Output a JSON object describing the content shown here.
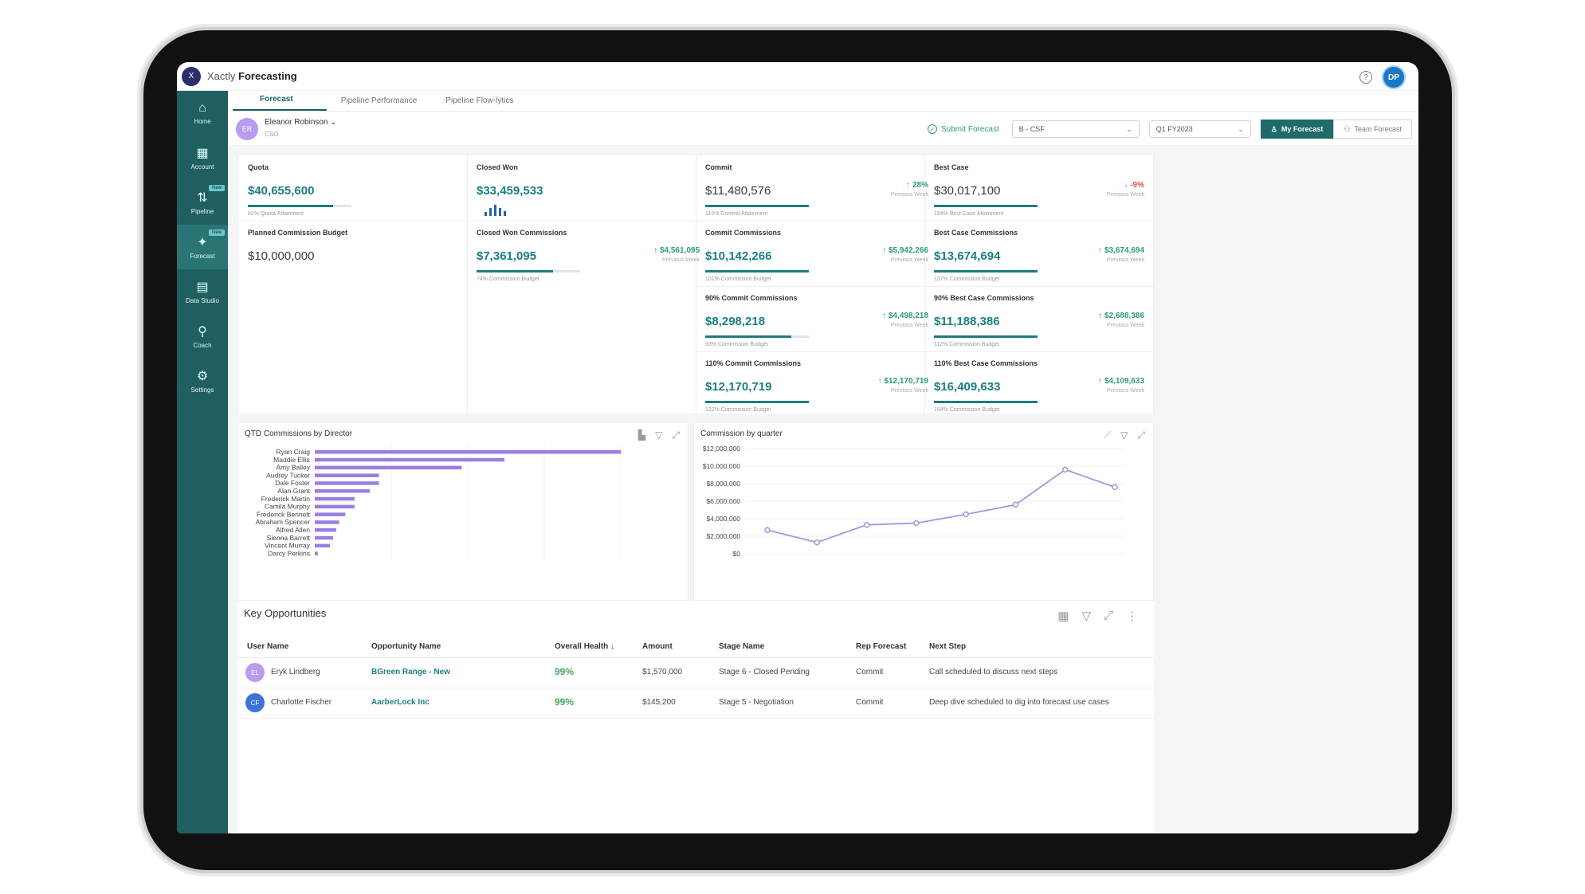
{
  "app": {
    "logo_text": "X",
    "name_prefix": "Xactly",
    "name_main": "Forecasting",
    "user_initials": "DP",
    "help_glyph": "?"
  },
  "sidebar": {
    "items": [
      {
        "label": "Home",
        "icon": "home-icon",
        "glyph": "⌂",
        "badge": ""
      },
      {
        "label": "Account",
        "icon": "building-icon",
        "glyph": "▦",
        "badge": ""
      },
      {
        "label": "Pipeline",
        "icon": "pipeline-icon",
        "glyph": "⇅",
        "badge": "New"
      },
      {
        "label": "Forecast",
        "icon": "forecast-icon",
        "glyph": "✦",
        "badge": "New"
      },
      {
        "label": "Data Studio",
        "icon": "data-studio-icon",
        "glyph": "▤",
        "badge": ""
      },
      {
        "label": "Coach",
        "icon": "coach-icon",
        "glyph": "⚲",
        "badge": ""
      },
      {
        "label": "Settings",
        "icon": "settings-icon",
        "glyph": "⚙",
        "badge": ""
      }
    ]
  },
  "tabs": [
    "Forecast",
    "Pipeline Performance",
    "Pipeline Flow-lytics"
  ],
  "user": {
    "initials": "ER",
    "name": "Eleanor Robinson",
    "role": "CSO"
  },
  "controls": {
    "submit": "Submit Forecast",
    "hierarchy": "B - CSF",
    "period": "Q1 FY2023",
    "my_forecast": "My Forecast",
    "team_forecast": "Team Forecast"
  },
  "kpis": {
    "quota": {
      "label": "Quota",
      "value": "$40,655,600",
      "sub": "82% Quota Attainment",
      "progress": 0.82
    },
    "closed_won": {
      "label": "Closed Won",
      "value": "$33,459,533"
    },
    "commit": {
      "label": "Commit",
      "value": "$11,480,576",
      "delta": "↑ 28%",
      "delta_sub": "Previous Week",
      "sub": "113% Commit Attainment",
      "progress": 1.0
    },
    "best_case": {
      "label": "Best Case",
      "value": "$30,017,100",
      "delta": "↓ -9%",
      "delta_sub": "Previous Week",
      "sub": "194% Best Case Attainment",
      "progress": 1.0
    },
    "planned_budget": {
      "label": "Planned Commission Budget",
      "value": "$10,000,000"
    },
    "closed_won_comm": {
      "label": "Closed Won Commissions",
      "value": "$7,361,095",
      "delta": "↑ $4,561,095",
      "delta_sub": "Previous Week",
      "sub": "74% Commission Budget",
      "progress": 0.74
    },
    "commit_comm": {
      "label": "Commit Commissions",
      "value": "$10,142,266",
      "delta": "↑ $5,942,266",
      "delta_sub": "Previous Week",
      "sub": "101% Commission Budget",
      "progress": 1.0
    },
    "best_comm": {
      "label": "Best Case Commissions",
      "value": "$13,674,694",
      "delta": "↑ $3,674,694",
      "delta_sub": "Previous Week",
      "sub": "137% Commission Budget",
      "progress": 1.0
    },
    "commit_90": {
      "label": "90% Commit Commissions",
      "value": "$8,298,218",
      "delta": "↑ $4,498,218",
      "delta_sub": "Previous Week",
      "sub": "83% Commission Budget",
      "progress": 0.83
    },
    "best_90": {
      "label": "90% Best Case Commissions",
      "value": "$11,188,386",
      "delta": "↑ $2,688,386",
      "delta_sub": "Previous Week",
      "sub": "112% Commission Budget",
      "progress": 1.0
    },
    "commit_110": {
      "label": "110% Commit Commissions",
      "value": "$12,170,719",
      "delta": "↑ $12,170,719",
      "delta_sub": "Previous Week",
      "sub": "122% Commission Budget",
      "progress": 1.0
    },
    "best_110": {
      "label": "110% Best Case Commissions",
      "value": "$16,409,633",
      "delta": "↑ $4,109,633",
      "delta_sub": "Previous Week",
      "sub": "164% Commission Budget",
      "progress": 1.0
    }
  },
  "charts": {
    "directors_title": "QTD Commissions by Director",
    "quarter_title": "Commission by quarter"
  },
  "chart_data": [
    {
      "type": "bar",
      "title": "QTD Commissions by Director",
      "orientation": "horizontal",
      "color": "#9b7fe0",
      "categories": [
        "Ryan Craig",
        "Maddie Ellis",
        "Amy Bailey",
        "Audrey Tucker",
        "Dale Foster",
        "Alan Grant",
        "Frederick Martin",
        "Camila Murphy",
        "Frederick Bennett",
        "Abraham Spencer",
        "Alfred Allen",
        "Sienna Barrett",
        "Vincent Murray",
        "Darcy Perkins"
      ],
      "values": [
        100,
        62,
        48,
        21,
        21,
        18,
        13,
        13,
        10,
        8,
        7,
        6,
        5,
        1
      ]
    },
    {
      "type": "line",
      "title": "Commission by quarter",
      "color": "#a696dd",
      "y_ticks": [
        "$0",
        "$2,000,000",
        "$4,000,000",
        "$6,000,000",
        "$8,000,000",
        "$10,000,000",
        "$12,000,000"
      ],
      "ylim": [
        0,
        12000000
      ],
      "values": [
        2700000,
        1300000,
        3300000,
        3500000,
        4500000,
        5600000,
        9600000,
        7600000
      ]
    }
  ],
  "opportunities": {
    "title": "Key Opportunities",
    "columns": [
      "User Name",
      "Opportunity Name",
      "Overall Health ↓",
      "Amount",
      "Stage Name",
      "Rep Forecast",
      "Next Step"
    ],
    "rows": [
      {
        "initials": "EL",
        "avatar_color": "#b79cf1",
        "user": "Eryk Lindberg",
        "opportunity": "BGreen Range - New",
        "health": "99%",
        "amount": "$1,570,000",
        "stage": "Stage 6 - Closed Pending",
        "forecast": "Commit",
        "next": "Call scheduled to discuss next steps"
      },
      {
        "initials": "CF",
        "avatar_color": "#3d73d8",
        "user": "Charlotte Fischer",
        "opportunity": "AarberLock Inc",
        "health": "99%",
        "amount": "$145,200",
        "stage": "Stage 5 - Negotiation",
        "forecast": "Commit",
        "next": "Deep dive scheduled to dig into forecast use cases"
      }
    ]
  }
}
